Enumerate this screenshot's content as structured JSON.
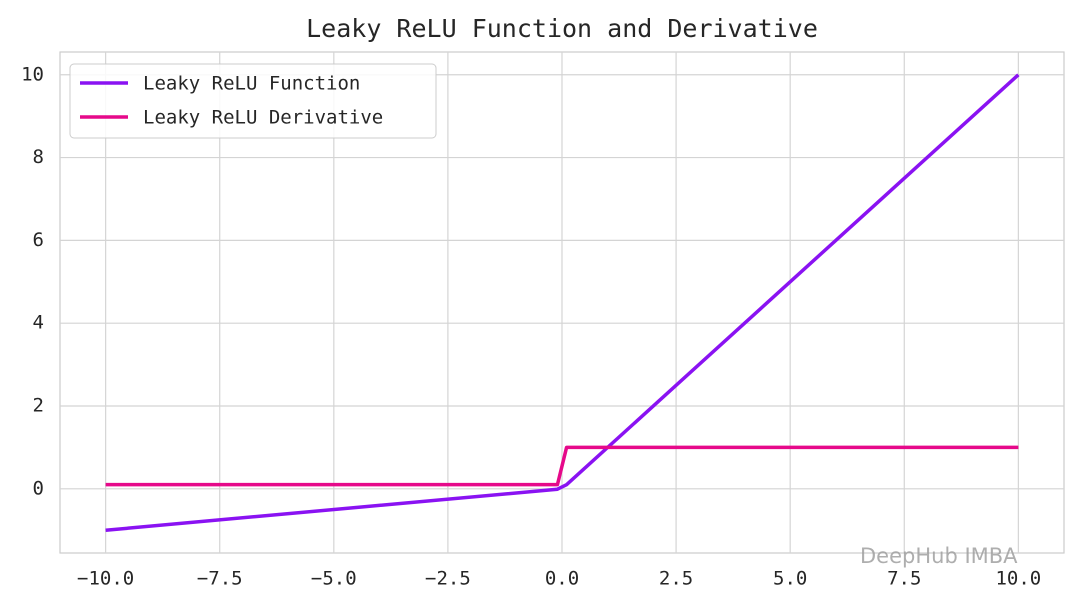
{
  "chart_data": {
    "type": "line",
    "title": "Leaky ReLU Function and Derivative",
    "x": [
      -10,
      -0.1,
      0.1,
      10
    ],
    "series": [
      {
        "name": "Leaky ReLU Function",
        "color": "#8a12f2",
        "values": [
          -1,
          -0.01,
          0.1,
          10
        ]
      },
      {
        "name": "Leaky ReLU Derivative",
        "color": "#e6098a",
        "values": [
          0.1,
          0.1,
          1,
          1
        ]
      }
    ],
    "xlim": [
      -11,
      11
    ],
    "ylim": [
      -1.55,
      10.55
    ],
    "xticks": [
      {
        "value": -10,
        "label": "−10.0"
      },
      {
        "value": -7.5,
        "label": "−7.5"
      },
      {
        "value": -5,
        "label": "−5.0"
      },
      {
        "value": -2.5,
        "label": "−2.5"
      },
      {
        "value": 0,
        "label": "0.0"
      },
      2.5,
      {
        "value": 5,
        "label": "5.0"
      },
      7.5,
      {
        "value": 10,
        "label": "10.0"
      }
    ],
    "yticks": [
      0,
      2,
      4,
      6,
      8,
      10
    ],
    "grid": true,
    "legend": "upper-left",
    "watermark": "DeepHub IMBA"
  }
}
